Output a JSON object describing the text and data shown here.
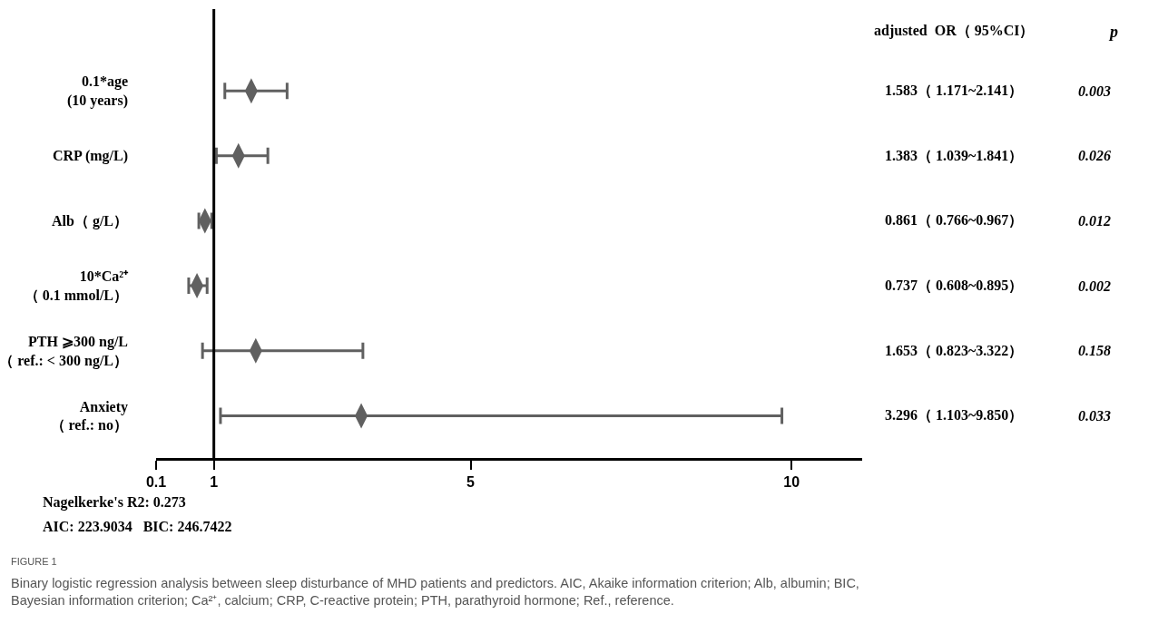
{
  "chart_data": {
    "type": "scatter",
    "orientation": "horizontal",
    "categories": [
      "0.1*age\n(10 years)",
      "CRP (mg/L)",
      "Alb（ g/L）",
      "10*Ca²⁺\n（ 0.1 mmol/L）",
      "PTH ⩾300 ng/L\n（ ref.: < 300 ng/L）",
      "Anxiety\n（ ref.: no）"
    ],
    "values": [
      1.583,
      1.383,
      0.861,
      0.737,
      1.653,
      3.296
    ],
    "errors": [
      [
        1.171,
        2.141
      ],
      [
        1.039,
        1.841
      ],
      [
        0.766,
        0.967
      ],
      [
        0.608,
        0.895
      ],
      [
        0.823,
        3.322
      ],
      [
        1.103,
        9.85
      ]
    ],
    "value_labels": [
      "1.583（ 1.171~2.141）",
      "1.383（ 1.039~1.841）",
      "0.861（ 0.766~0.967）",
      "0.737（ 0.608~0.895）",
      "1.653（ 0.823~3.322）",
      "3.296（ 1.103~9.850）"
    ],
    "color": "#606060",
    "xlim": [
      0.1,
      11.1
    ],
    "xticks": [
      0.1,
      1,
      5,
      10
    ],
    "ref_lines": [
      {
        "axis": "x",
        "value": 1,
        "color": "#000000"
      }
    ],
    "grid": false,
    "annotations": [
      "adjusted  OR（ 95%CI）",
      "p",
      "0.003",
      "0.026",
      "0.012",
      "0.002",
      "0.158",
      "0.033",
      "Nagelkerke's R2: 0.273",
      "AIC: 223.9034   BIC: 246.7422",
      "FIGURE 1",
      "Binary logistic regression analysis between sleep disturbance of MHD patients and predictors. AIC, Akaike information criterion; Alb, albumin; BIC, Bayesian information criterion; Ca²⁺, calcium; CRP, C-reactive protein; PTH, parathyroid hormone; Ref., reference."
    ]
  }
}
